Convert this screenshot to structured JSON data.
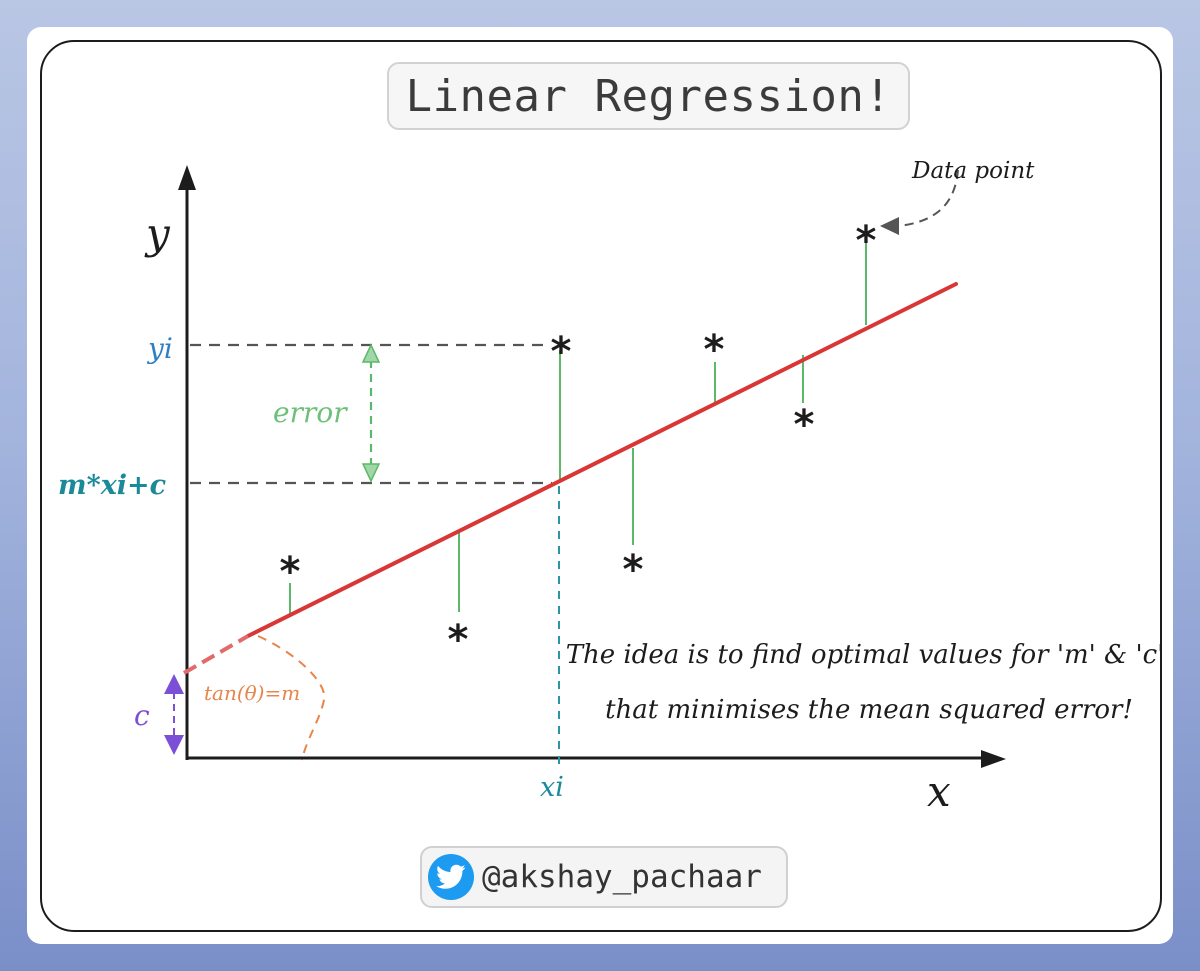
{
  "title": "Linear Regression!",
  "labels": {
    "y_axis": "y",
    "x_axis": "x",
    "yi": "yi",
    "prediction": "m*xi+c",
    "xi": "xi",
    "intercept": "c",
    "slope": "tan(θ)=m",
    "error": "error",
    "data_point": "Data point",
    "point_glyph": "*"
  },
  "caption": {
    "line1": "The idea is to find optimal values for 'm' & 'c'",
    "line2": "that minimises the mean squared error!"
  },
  "footer": {
    "handle": "@akshay_pachaar",
    "icon": "twitter-bird-icon"
  },
  "colors": {
    "regression_line": "#d93636",
    "residual": "#5cb86a",
    "error_label": "#6cc07a",
    "yi_label": "#2f7fc2",
    "prediction_label": "#1a8a99",
    "xi_label": "#1a8a99",
    "intercept": "#7b4fd6",
    "slope": "#e8854a",
    "guide_dashes": "#555555",
    "twitter": "#1d9bf0"
  }
}
